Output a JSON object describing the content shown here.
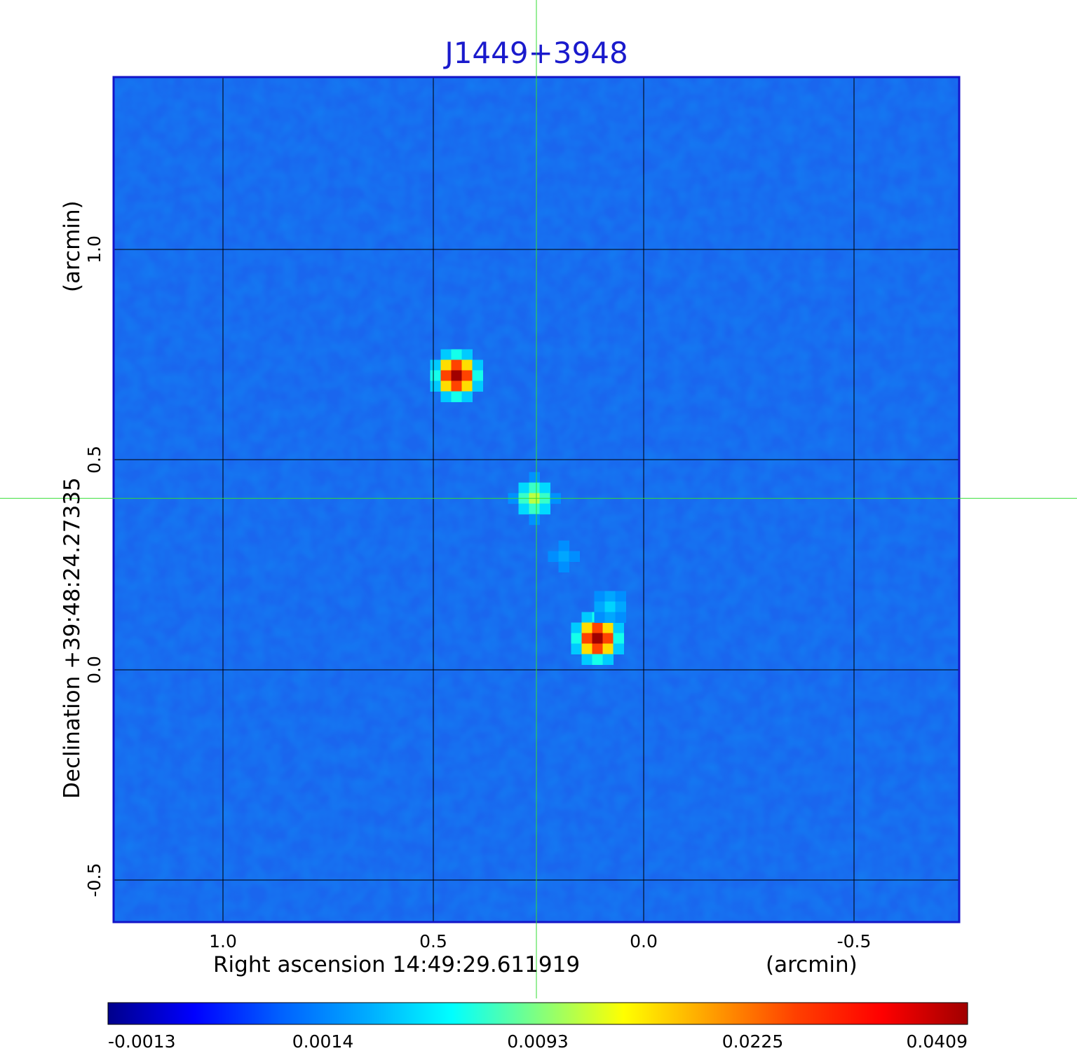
{
  "chart_data": {
    "type": "heatmap",
    "title": "J1449+3948",
    "title_color": "#1a1acc",
    "xlabel": "Right ascension  14:49:29.611919",
    "xunit": "(arcmin)",
    "ylabel": "Declination  +39:48:24.27335",
    "yunit": "(arcmin)",
    "x_range": [
      1.26,
      -0.75
    ],
    "y_range": [
      -0.6,
      1.41
    ],
    "x_ticks": [
      {
        "value": 1.0,
        "label": "1.0"
      },
      {
        "value": 0.5,
        "label": "0.5"
      },
      {
        "value": 0.0,
        "label": "0.0"
      },
      {
        "value": -0.5,
        "label": "-0.5"
      }
    ],
    "y_ticks": [
      {
        "value": 1.0,
        "label": "1.0"
      },
      {
        "value": 0.5,
        "label": "0.5"
      },
      {
        "value": 0.0,
        "label": "0.0"
      },
      {
        "value": -0.5,
        "label": "-0.5"
      }
    ],
    "grid": true,
    "crosshair": {
      "x": 0.255,
      "y": 0.408,
      "color": "#33dd33"
    },
    "sources": [
      {
        "x": 0.445,
        "y": 0.7,
        "peak": 0.0409
      },
      {
        "x": 0.26,
        "y": 0.408,
        "peak": 0.0118
      },
      {
        "x": 0.11,
        "y": 0.075,
        "peak": 0.0409
      },
      {
        "x": 0.19,
        "y": 0.27,
        "peak": 0.0028
      },
      {
        "x": 0.08,
        "y": 0.15,
        "peak": 0.0045
      }
    ],
    "colorbar": {
      "tick_labels": [
        "-0.0013",
        "0.0014",
        "0.0093",
        "0.0225",
        "0.0409"
      ],
      "colors": [
        "#00008b",
        "#0000ff",
        "#0060ff",
        "#00aaff",
        "#00ffff",
        "#80ff80",
        "#ffff00",
        "#ffa000",
        "#ff4000",
        "#ff0000",
        "#a00000"
      ]
    },
    "background_color": "#1a66ee"
  }
}
